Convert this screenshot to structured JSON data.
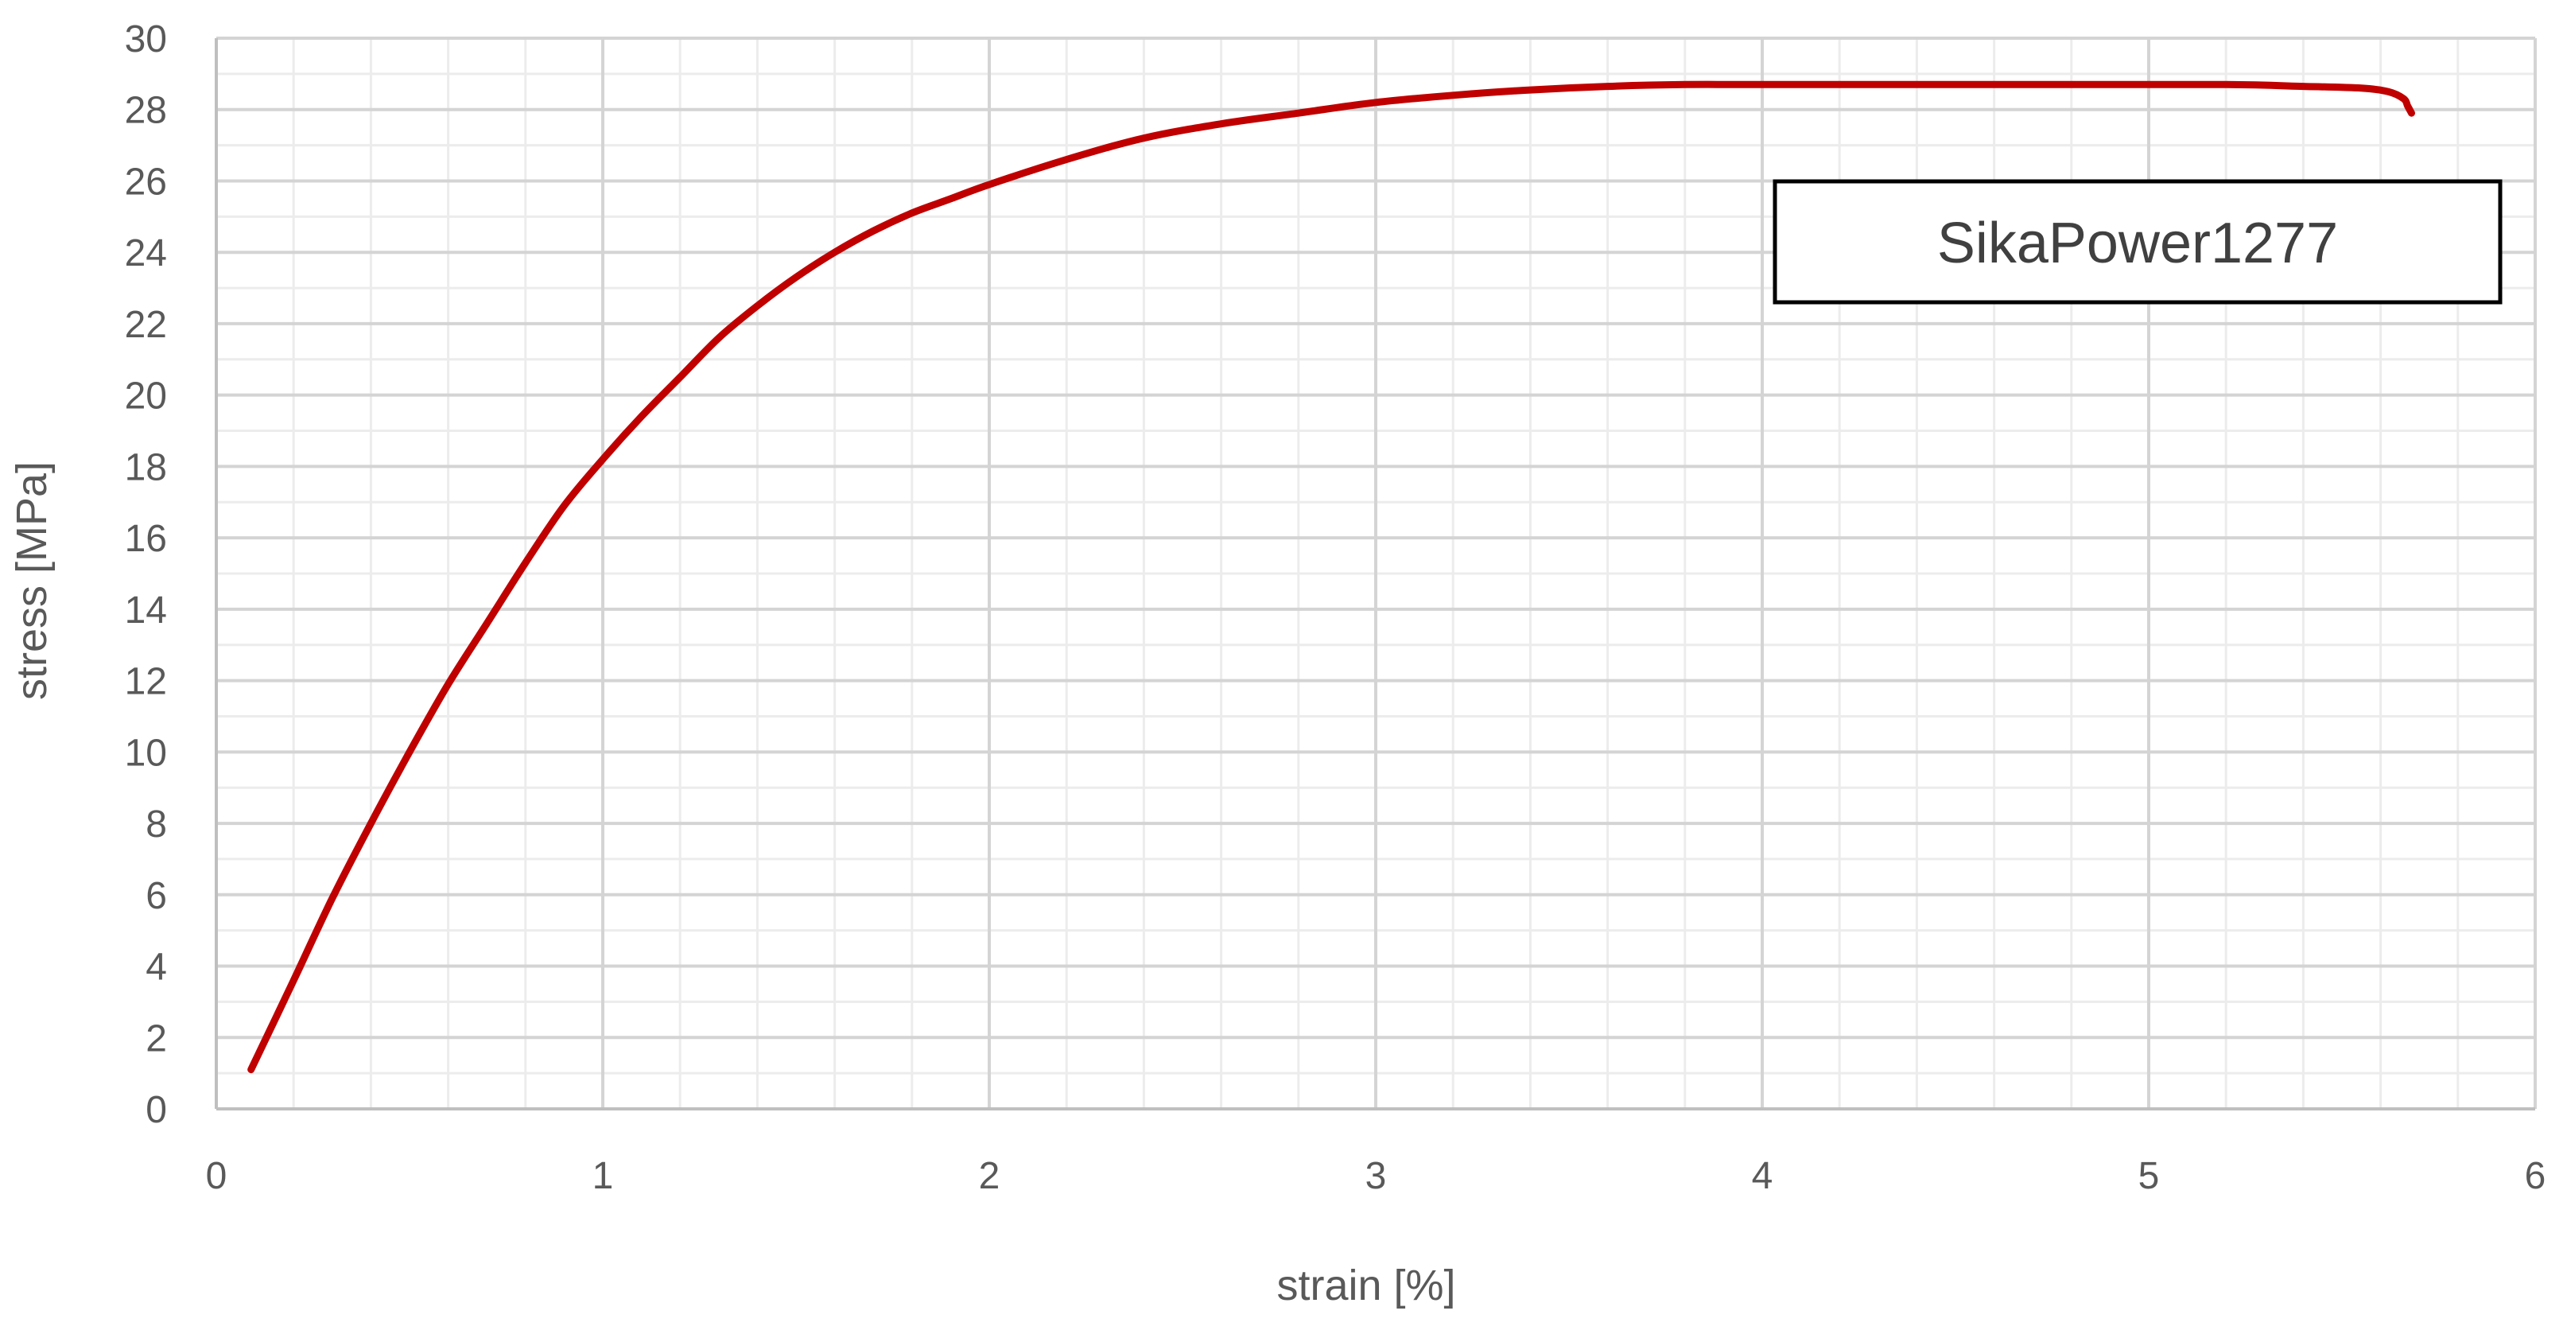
{
  "chart_data": {
    "type": "line",
    "title": "",
    "xlabel": "strain [%]",
    "ylabel": "stress  [MPa]",
    "xlim": [
      0,
      6
    ],
    "ylim": [
      0,
      30
    ],
    "x_ticks": [
      "0",
      "1",
      "2",
      "3",
      "4",
      "5",
      "6"
    ],
    "y_ticks": [
      "0",
      "2",
      "4",
      "6",
      "8",
      "10",
      "12",
      "14",
      "16",
      "18",
      "20",
      "22",
      "24",
      "26",
      "28",
      "30"
    ],
    "grid": true,
    "minor_grid": true,
    "legend_position": "top-right",
    "series": [
      {
        "name": "SikaPower1277",
        "color": "#c00000",
        "x": [
          0.09,
          0.2,
          0.3,
          0.4,
          0.5,
          0.6,
          0.7,
          0.8,
          0.9,
          1.0,
          1.1,
          1.2,
          1.3,
          1.4,
          1.5,
          1.6,
          1.7,
          1.8,
          1.9,
          2.0,
          2.2,
          2.4,
          2.6,
          2.8,
          3.0,
          3.2,
          3.4,
          3.6,
          3.8,
          4.0,
          4.4,
          4.8,
          5.2,
          5.4,
          5.55,
          5.62,
          5.66,
          5.67,
          5.68
        ],
        "y": [
          1.1,
          3.6,
          5.9,
          8.0,
          10.0,
          11.9,
          13.6,
          15.3,
          16.9,
          18.2,
          19.4,
          20.5,
          21.6,
          22.5,
          23.3,
          24.0,
          24.6,
          25.1,
          25.5,
          25.9,
          26.6,
          27.2,
          27.6,
          27.9,
          28.2,
          28.4,
          28.55,
          28.65,
          28.7,
          28.7,
          28.7,
          28.7,
          28.7,
          28.65,
          28.6,
          28.5,
          28.3,
          28.1,
          27.9
        ]
      }
    ]
  }
}
